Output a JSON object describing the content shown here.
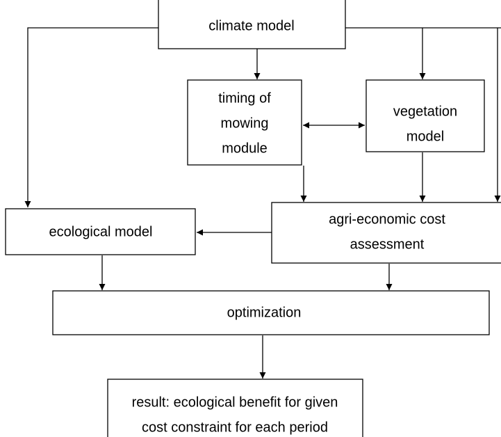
{
  "nodes": [
    {
      "label": [
        "climate model"
      ]
    },
    {
      "label": [
        "timing of",
        "mowing",
        "module"
      ]
    },
    {
      "label": [
        "vegetation",
        "model"
      ]
    },
    {
      "label": [
        "agri-economic cost",
        "assessment"
      ]
    },
    {
      "label": [
        "ecological model"
      ]
    },
    {
      "label": [
        "optimization"
      ]
    },
    {
      "label": [
        "result: ecological benefit for given",
        "cost constraint for each period"
      ]
    }
  ]
}
